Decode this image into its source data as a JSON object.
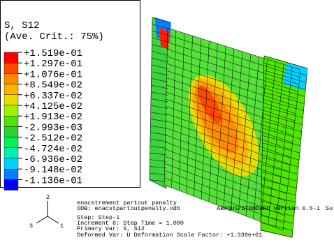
{
  "legend": {
    "title": "S, S12",
    "subtitle": "(Ave. Crit.: 75%)",
    "labels": [
      "+1.519e-01",
      "+1.297e-01",
      "+1.076e-01",
      "+8.549e-02",
      "+6.337e-02",
      "+4.125e-02",
      "+1.913e-02",
      "-2.993e-03",
      "-2.512e-02",
      "-4.724e-02",
      "-6.936e-02",
      "-9.148e-02",
      "-1.136e-01"
    ],
    "extra_label": "",
    "colors": [
      "#ff0000",
      "#ff4a00",
      "#ff8c00",
      "#ffb400",
      "#e6dc00",
      "#a0f000",
      "#50e600",
      "#2ed22e",
      "#00f05a",
      "#00f0b4",
      "#00d2ff",
      "#0080ff",
      "#0000ff"
    ]
  },
  "info": {
    "lines": [
      "enacstrement partout panalty",
      "ODB: enacstpartoutpenalty.odb",
      "Step: Step-1",
      "Increment      6: Step Time =       1.000",
      "Primary Var: S, S12",
      "Deformed Var: U   Deformation Scale Factor: +1.339e+01"
    ],
    "version": "ABAQUS/STANDARD Version 6.5-1",
    "cut": "Su"
  },
  "triad": {
    "y": "2",
    "z": "3",
    "x": "1"
  }
}
